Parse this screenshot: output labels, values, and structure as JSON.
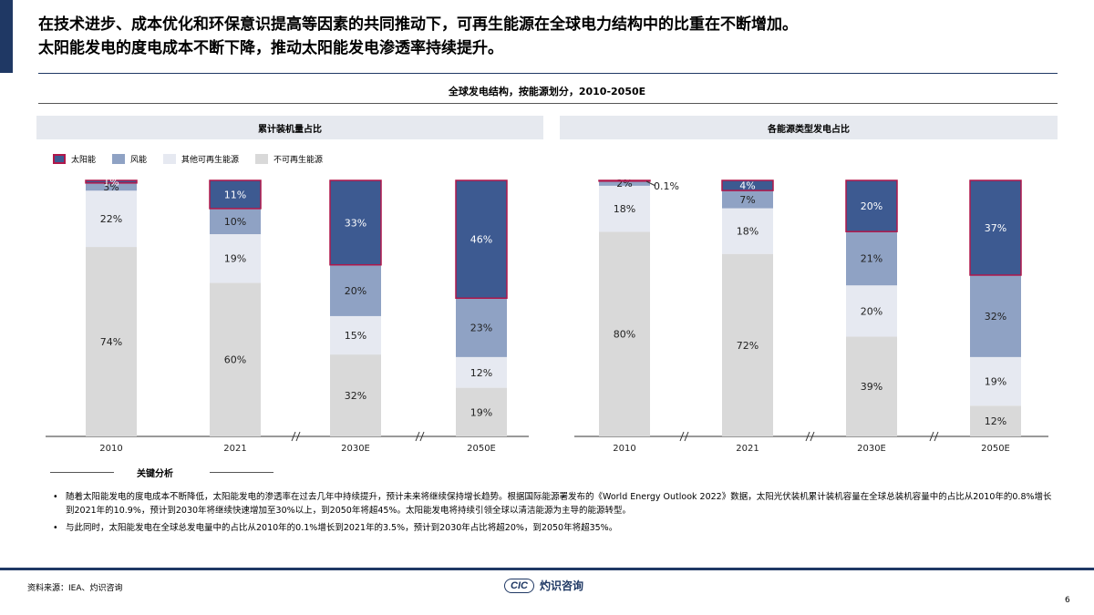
{
  "headline": {
    "line1": "在技术进步、成本优化和环保意识提高等因素的共同推动下，可再生能源在全球电力结构中的比重在不断增加。",
    "line2": "太阳能发电的度电成本不断下降，推动太阳能发电渗透率持续提升。"
  },
  "section_title": "全球发电结构，按能源划分，2010-2050E",
  "panels": {
    "left_title": "累计装机量占比",
    "right_title": "各能源类型发电占比"
  },
  "legend": [
    {
      "label": "太阳能",
      "color": "#3d5a91",
      "border": "#b0174a"
    },
    {
      "label": "风能",
      "color": "#8fa2c4",
      "border": "#8fa2c4"
    },
    {
      "label": "其他可再生能源",
      "color": "#e6e9f1",
      "border": "#e6e9f1"
    },
    {
      "label": "不可再生能源",
      "color": "#d9d9d9",
      "border": "#d9d9d9"
    }
  ],
  "chart_data": [
    {
      "type": "bar",
      "stacked": true,
      "title": "累计装机量占比",
      "categories": [
        "2010",
        "2021",
        "2030E",
        "2050E"
      ],
      "series": [
        {
          "name": "不可再生能源",
          "values": [
            74,
            60,
            32,
            19
          ],
          "labels": [
            "74%",
            "60%",
            "32%",
            "19%"
          ]
        },
        {
          "name": "其他可再生能源",
          "values": [
            22,
            19,
            15,
            12
          ],
          "labels": [
            "22%",
            "19%",
            "15%",
            "12%"
          ]
        },
        {
          "name": "风能",
          "values": [
            3,
            10,
            20,
            23
          ],
          "labels": [
            "3%",
            "10%",
            "20%",
            "23%"
          ]
        },
        {
          "name": "太阳能",
          "values": [
            1,
            11,
            33,
            46
          ],
          "labels": [
            "1%",
            "11%",
            "33%",
            "46%"
          ]
        }
      ],
      "ylim": [
        0,
        100
      ]
    },
    {
      "type": "bar",
      "stacked": true,
      "title": "各能源类型发电占比",
      "categories": [
        "2010",
        "2021",
        "2030E",
        "2050E"
      ],
      "series": [
        {
          "name": "不可再生能源",
          "values": [
            80,
            72,
            39,
            12
          ],
          "labels": [
            "80%",
            "72%",
            "39%",
            "12%"
          ]
        },
        {
          "name": "其他可再生能源",
          "values": [
            18,
            18,
            20,
            19
          ],
          "labels": [
            "18%",
            "18%",
            "20%",
            "19%"
          ]
        },
        {
          "name": "风能",
          "values": [
            2,
            7,
            21,
            32
          ],
          "labels": [
            "2%",
            "7%",
            "21%",
            "32%"
          ]
        },
        {
          "name": "太阳能",
          "values": [
            0.1,
            4,
            20,
            37
          ],
          "labels": [
            "0.1%",
            "4%",
            "20%",
            "37%"
          ]
        }
      ],
      "ylim": [
        0,
        100
      ]
    }
  ],
  "key_analysis": {
    "title": "关键分析",
    "bullets": [
      "随着太阳能发电的度电成本不断降低，太阳能发电的渗透率在过去几年中持续提升，预计未来将继续保持增长趋势。根据国际能源署发布的《World Energy Outlook 2022》数据，太阳光伏装机累计装机容量在全球总装机容量中的占比从2010年的0.8%增长到2021年的10.9%，预计到2030年将继续快速增加至30%以上，到2050年将超45%。太阳能发电将持续引领全球以清洁能源为主导的能源转型。",
      "与此同时，太阳能发电在全球总发电量中的占比从2010年的0.1%增长到2021年的3.5%，预计到2030年占比将超20%，到2050年将超35%。"
    ]
  },
  "source": "资料来源：IEA、灼识咨询",
  "logo": {
    "mark": "CIC",
    "name": "灼识咨询",
    "sub": "China Insights Consultancy"
  },
  "watermark": {
    "mark": "CIC",
    "name": "灼识咨询",
    "sub": "China Insights Consultancy"
  },
  "page_number": "6"
}
